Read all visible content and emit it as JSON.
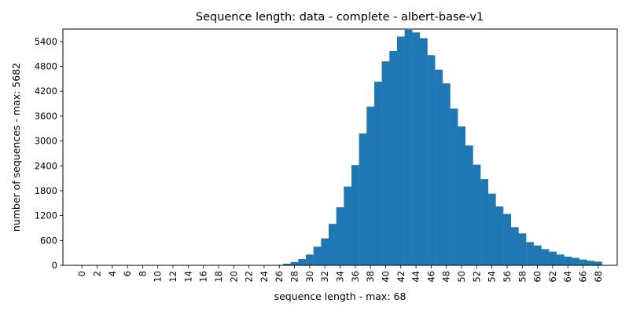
{
  "chart_data": {
    "type": "bar",
    "title": "Sequence length: data - complete - albert-base-v1",
    "xlabel": "sequence length - max: 68",
    "ylabel": "number of sequences - max: 5682",
    "x": [
      0,
      1,
      2,
      3,
      4,
      5,
      6,
      7,
      8,
      9,
      10,
      11,
      12,
      13,
      14,
      15,
      16,
      17,
      18,
      19,
      20,
      21,
      22,
      23,
      24,
      25,
      26,
      27,
      28,
      29,
      30,
      31,
      32,
      33,
      34,
      35,
      36,
      37,
      38,
      39,
      40,
      41,
      42,
      43,
      44,
      45,
      46,
      47,
      48,
      49,
      50,
      51,
      52,
      53,
      54,
      55,
      56,
      57,
      58,
      59,
      60,
      61,
      62,
      63,
      64,
      65,
      66,
      67,
      68
    ],
    "values": [
      0,
      0,
      0,
      0,
      0,
      0,
      0,
      0,
      0,
      0,
      0,
      0,
      0,
      0,
      0,
      5,
      4,
      0,
      8,
      0,
      6,
      0,
      0,
      0,
      0,
      8,
      12,
      40,
      80,
      150,
      260,
      450,
      650,
      1000,
      1400,
      1900,
      2420,
      3180,
      3830,
      4430,
      4920,
      5170,
      5520,
      5682,
      5620,
      5480,
      5070,
      4720,
      4390,
      3780,
      3350,
      2890,
      2430,
      2080,
      1730,
      1420,
      1240,
      920,
      770,
      560,
      480,
      390,
      330,
      260,
      210,
      180,
      140,
      110,
      90
    ],
    "xticks": [
      "0",
      "2",
      "4",
      "6",
      "8",
      "10",
      "12",
      "14",
      "16",
      "18",
      "20",
      "22",
      "24",
      "26",
      "28",
      "30",
      "32",
      "34",
      "36",
      "38",
      "40",
      "42",
      "44",
      "46",
      "48",
      "50",
      "52",
      "54",
      "56",
      "58",
      "60",
      "62",
      "64",
      "66",
      "68"
    ],
    "yticks": [
      "0",
      "600",
      "1200",
      "1800",
      "2400",
      "3000",
      "3600",
      "4200",
      "4800",
      "5400"
    ],
    "xlim": [
      -2.5,
      70.5
    ],
    "ylim": [
      0,
      5700
    ],
    "bar_color": "#1f77b4",
    "grid": false,
    "legend": "none"
  }
}
